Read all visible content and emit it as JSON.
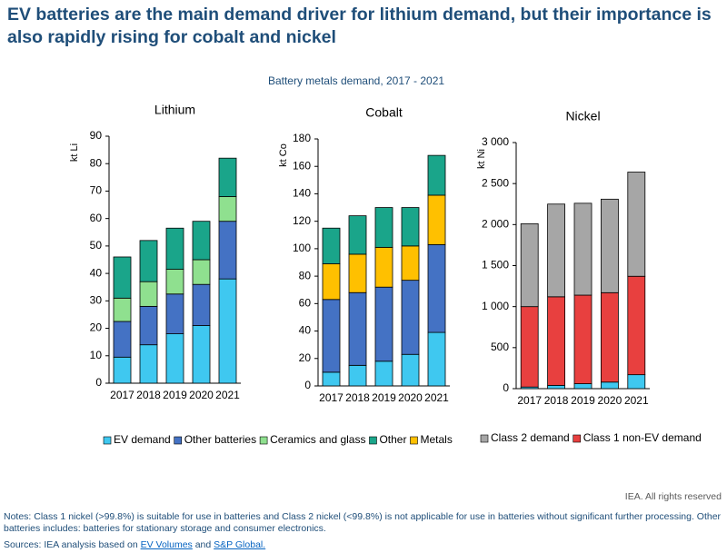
{
  "header": {
    "title": "EV batteries are the main demand driver for lithium demand, but their importance is also rapidly rising for cobalt and nickel"
  },
  "subtitle": "Battery metals demand, 2017 - 2021",
  "chart_data": [
    {
      "type": "bar",
      "stacked": true,
      "title": "Lithium",
      "y_label": "kt Li",
      "categories": [
        "2017",
        "2018",
        "2019",
        "2020",
        "2021"
      ],
      "series": [
        {
          "name": "EV demand",
          "color": "#3fc8f0",
          "values": [
            9.5,
            14,
            18,
            21,
            38
          ]
        },
        {
          "name": "Other batteries",
          "color": "#4472c4",
          "values": [
            13,
            14,
            14.5,
            15,
            21
          ]
        },
        {
          "name": "Ceramics and glass",
          "color": "#8fe08f",
          "values": [
            8.5,
            9,
            9,
            9,
            9
          ]
        },
        {
          "name": "Other",
          "color": "#1aa58a",
          "values": [
            15,
            15,
            15,
            14,
            14
          ]
        }
      ],
      "ylim": [
        0,
        90
      ],
      "yticks": [
        0,
        10,
        20,
        30,
        40,
        50,
        60,
        70,
        80,
        90
      ]
    },
    {
      "type": "bar",
      "stacked": true,
      "title": "Cobalt",
      "y_label": "kt Co",
      "categories": [
        "2017",
        "2018",
        "2019",
        "2020",
        "2021"
      ],
      "series": [
        {
          "name": "EV demand",
          "color": "#3fc8f0",
          "values": [
            10,
            15,
            18,
            23,
            39
          ]
        },
        {
          "name": "Other batteries",
          "color": "#4472c4",
          "values": [
            53,
            53,
            54,
            54,
            64
          ]
        },
        {
          "name": "Metals",
          "color": "#ffc000",
          "values": [
            26,
            28,
            29,
            25,
            36
          ]
        },
        {
          "name": "Other",
          "color": "#1aa58a",
          "values": [
            26,
            28,
            29,
            28,
            29
          ]
        }
      ],
      "ylim": [
        0,
        180
      ],
      "yticks": [
        0,
        20,
        40,
        60,
        80,
        100,
        120,
        140,
        160,
        180
      ]
    },
    {
      "type": "bar",
      "stacked": true,
      "title": "Nickel",
      "y_label": "kt Ni",
      "categories": [
        "2017",
        "2018",
        "2019",
        "2020",
        "2021"
      ],
      "series": [
        {
          "color": "#3fc8f0",
          "values": [
            20,
            40,
            60,
            80,
            170
          ]
        },
        {
          "name": "Class 1 non-EV demand",
          "color": "#e8403f",
          "values": [
            980,
            1080,
            1080,
            1090,
            1200
          ]
        },
        {
          "name": "Class 2 demand",
          "color": "#a6a6a6",
          "values": [
            1010,
            1130,
            1120,
            1140,
            1270
          ]
        }
      ],
      "ylim": [
        0,
        3000
      ],
      "yticks": [
        0,
        500,
        {
          "value": 1000,
          "label": "1 000"
        },
        {
          "value": 1500,
          "label": "1 500"
        },
        {
          "value": 2000,
          "label": "2 000"
        },
        {
          "value": 2500,
          "label": "2 500"
        },
        {
          "value": 3000,
          "label": "3 000"
        }
      ]
    }
  ],
  "credit": "IEA. All rights reserved",
  "notes": "Notes: Class 1 nickel (>99.8%) is suitable for use in batteries and Class 2 nickel (<99.8%) is not applicable for use in batteries without significant further processing. Other batteries includes: batteries for stationary storage and consumer electronics.",
  "sources": {
    "prefix": "Sources: IEA analysis based on ",
    "link1": "EV Volumes",
    "middle": " and ",
    "link2": "S&P Global."
  }
}
